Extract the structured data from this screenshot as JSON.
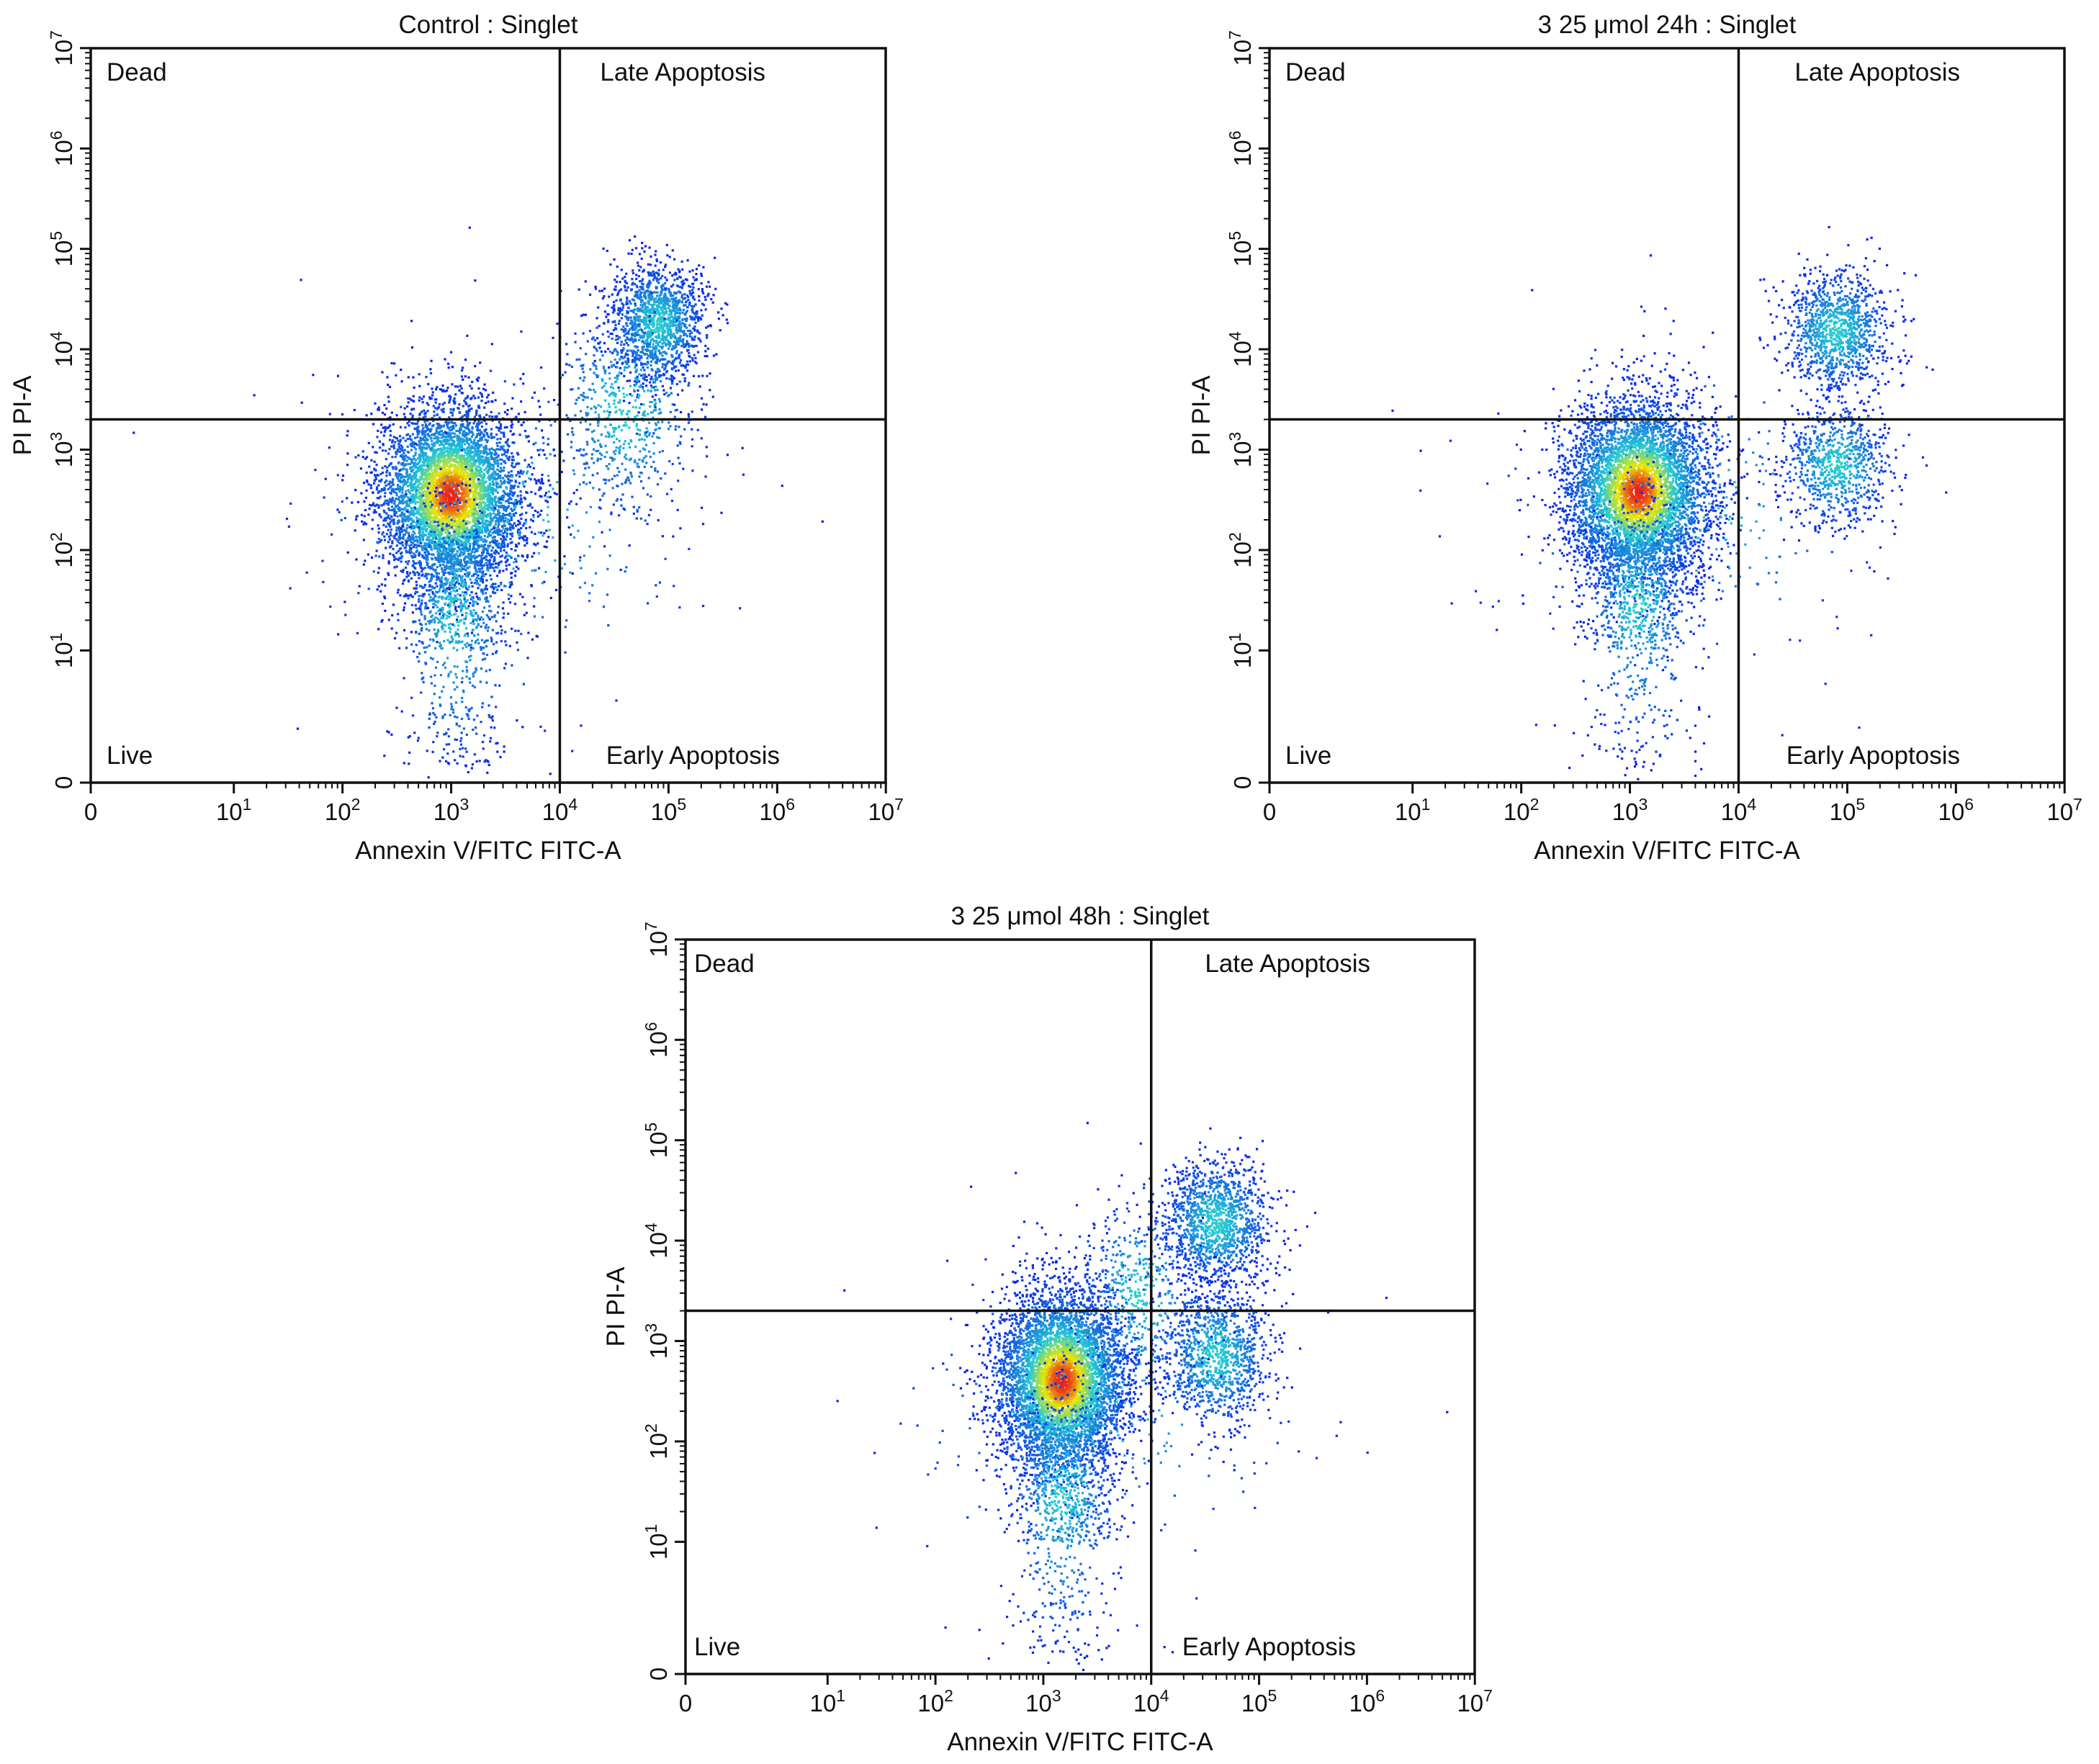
{
  "colors": {
    "low": "#0a1fe6",
    "mid": "#22c9d6",
    "high": "#e9e800",
    "peak": "#e8201a",
    "axis": "#111111"
  },
  "chart_data": [
    {
      "type": "scatter",
      "subtype": "flow-cytometry-density-dot-plot",
      "title": "Control : Singlet",
      "xlabel": "Annexin V/FITC FITC-A",
      "ylabel": "PI PI-A",
      "x_scale": "biexponential",
      "y_scale": "biexponential",
      "x_ticks": [
        "0",
        "10^1",
        "10^2",
        "10^3",
        "10^4",
        "10^5",
        "10^6",
        "10^7"
      ],
      "y_ticks": [
        "0",
        "10^1",
        "10^2",
        "10^3",
        "10^4",
        "10^5",
        "10^6",
        "10^7"
      ],
      "xlim": [
        0,
        10000000
      ],
      "ylim": [
        0,
        10000000
      ],
      "quadrant_gate": {
        "x": 10000,
        "y": 2000
      },
      "quadrant_labels": {
        "top_left": "Dead",
        "top_right": "Late Apoptosis",
        "bottom_left": "Live",
        "bottom_right": "Early Apoptosis"
      },
      "populations": [
        {
          "name": "live",
          "center": [
            1000,
            350
          ],
          "spread_decades": [
            0.33,
            0.45
          ],
          "count": 5200,
          "peak": true
        },
        {
          "name": "live-tail",
          "center": [
            1100,
            25
          ],
          "spread_decades": [
            0.25,
            0.55
          ],
          "count": 900
        },
        {
          "name": "late-apoptosis",
          "center": [
            80000,
            18000
          ],
          "spread_decades": [
            0.22,
            0.3
          ],
          "count": 1400
        },
        {
          "name": "bridge",
          "center": [
            40000,
            2500
          ],
          "spread_decades": [
            0.35,
            0.55
          ],
          "count": 650
        },
        {
          "name": "scatter",
          "center": [
            3000,
            200
          ],
          "spread_decades": [
            0.9,
            0.8
          ],
          "count": 300
        }
      ]
    },
    {
      "type": "scatter",
      "subtype": "flow-cytometry-density-dot-plot",
      "title": "3 25 μmol 24h : Singlet",
      "xlabel": "Annexin V/FITC FITC-A",
      "ylabel": "PI PI-A",
      "x_scale": "biexponential",
      "y_scale": "biexponential",
      "x_ticks": [
        "0",
        "10^1",
        "10^2",
        "10^3",
        "10^4",
        "10^5",
        "10^6",
        "10^7"
      ],
      "y_ticks": [
        "0",
        "10^1",
        "10^2",
        "10^3",
        "10^4",
        "10^5",
        "10^6",
        "10^7"
      ],
      "xlim": [
        0,
        10000000
      ],
      "ylim": [
        0,
        10000000
      ],
      "quadrant_gate": {
        "x": 10000,
        "y": 2000
      },
      "quadrant_labels": {
        "top_left": "Dead",
        "top_right": "Late Apoptosis",
        "bottom_left": "Live",
        "bottom_right": "Early Apoptosis"
      },
      "populations": [
        {
          "name": "live",
          "center": [
            1200,
            380
          ],
          "spread_decades": [
            0.33,
            0.45
          ],
          "count": 5200,
          "peak": true
        },
        {
          "name": "live-tail",
          "center": [
            1200,
            30
          ],
          "spread_decades": [
            0.25,
            0.55
          ],
          "count": 900
        },
        {
          "name": "late-apoptosis",
          "center": [
            80000,
            15000
          ],
          "spread_decades": [
            0.25,
            0.3
          ],
          "count": 1100
        },
        {
          "name": "early-apoptosis",
          "center": [
            80000,
            700
          ],
          "spread_decades": [
            0.25,
            0.3
          ],
          "count": 800
        },
        {
          "name": "scatter",
          "center": [
            3000,
            250
          ],
          "spread_decades": [
            0.9,
            0.8
          ],
          "count": 300
        }
      ]
    },
    {
      "type": "scatter",
      "subtype": "flow-cytometry-density-dot-plot",
      "title": "3 25 μmol 48h : Singlet",
      "xlabel": "Annexin V/FITC FITC-A",
      "ylabel": "PI PI-A",
      "x_scale": "biexponential",
      "y_scale": "biexponential",
      "x_ticks": [
        "0",
        "10^1",
        "10^2",
        "10^3",
        "10^4",
        "10^5",
        "10^6",
        "10^7"
      ],
      "y_ticks": [
        "0",
        "10^1",
        "10^2",
        "10^3",
        "10^4",
        "10^5",
        "10^6",
        "10^7"
      ],
      "xlim": [
        0,
        10000000
      ],
      "ylim": [
        0,
        10000000
      ],
      "quadrant_gate": {
        "x": 10000,
        "y": 2000
      },
      "quadrant_labels": {
        "top_left": "Dead",
        "top_right": "Late Apoptosis",
        "bottom_left": "Live",
        "bottom_right": "Early Apoptosis"
      },
      "populations": [
        {
          "name": "live",
          "center": [
            1500,
            400
          ],
          "spread_decades": [
            0.3,
            0.45
          ],
          "count": 5200,
          "peak": true
        },
        {
          "name": "live-tail",
          "center": [
            1500,
            30
          ],
          "spread_decades": [
            0.25,
            0.55
          ],
          "count": 900
        },
        {
          "name": "late-apoptosis",
          "center": [
            40000,
            15000
          ],
          "spread_decades": [
            0.25,
            0.32
          ],
          "count": 1300
        },
        {
          "name": "early-apoptosis",
          "center": [
            40000,
            700
          ],
          "spread_decades": [
            0.25,
            0.35
          ],
          "count": 1100
        },
        {
          "name": "bridge",
          "center": [
            8000,
            3000
          ],
          "spread_decades": [
            0.3,
            0.5
          ],
          "count": 500
        },
        {
          "name": "scatter",
          "center": [
            3000,
            250
          ],
          "spread_decades": [
            0.9,
            0.8
          ],
          "count": 300
        }
      ]
    }
  ]
}
